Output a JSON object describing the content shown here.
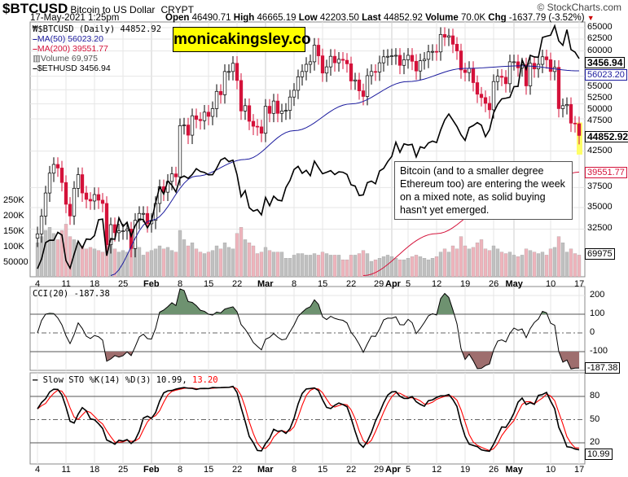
{
  "header": {
    "symbol": "$BTCUSD",
    "name": "Bitcoin to US Dollar",
    "exchange": "CRYPT",
    "brand": "© StockCharts.com",
    "datetime": "17-May-2021 1:25pm",
    "open_l": "Open",
    "open": "46490.71",
    "high_l": "High",
    "high": "46665.19",
    "low_l": "Low",
    "low": "42203.50",
    "last_l": "Last",
    "last": "44852.92",
    "vol_l": "Volume",
    "vol": "70.0K",
    "chg_l": "Chg",
    "chg": "-1637.79 (-3.52%)"
  },
  "legend": {
    "main": "$BTCUSD (Daily) 44852.92",
    "ma50": "MA(50) 56023.20",
    "ma200": "MA(200) 39551.77",
    "volume": "Volume 69,975",
    "eth": "$ETHUSD 3456.94"
  },
  "watermark": "monicakingsley.co",
  "annotation": "Bitcoin (and to a smaller degree Ethereum too) are entering the week on a mixed note, as solid buying hasn't yet emerged.",
  "colors": {
    "up": "#ffffff",
    "down": "#d4123a",
    "ma50": "#1b1b9e",
    "ma200": "#d4123a",
    "eth": "#000000",
    "vol_up": "#c0c0c0",
    "vol_down": "#eeb4bc",
    "cci_pos": "#6e9270",
    "cci_neg": "#9e6e6e",
    "sto_d": "#ff0000",
    "highlight": "#ffff66"
  },
  "chart_data": [
    {
      "type": "candlestick",
      "title": "$BTCUSD (Daily)",
      "scale": "log",
      "ylim": [
        31000,
        66000
      ],
      "yticks": [
        65000,
        62500,
        60000,
        55000,
        52500,
        50000,
        47500,
        42500,
        37500,
        35000,
        32500
      ],
      "x_labels": [
        {
          "i": 0,
          "t": "4"
        },
        {
          "i": 7,
          "t": "11"
        },
        {
          "i": 14,
          "t": "18"
        },
        {
          "i": 21,
          "t": "25"
        },
        {
          "i": 28,
          "t": "Feb",
          "b": true
        },
        {
          "i": 35,
          "t": "8"
        },
        {
          "i": 42,
          "t": "15"
        },
        {
          "i": 49,
          "t": "22"
        },
        {
          "i": 56,
          "t": "Mar",
          "b": true
        },
        {
          "i": 63,
          "t": "8"
        },
        {
          "i": 70,
          "t": "15"
        },
        {
          "i": 77,
          "t": "22"
        },
        {
          "i": 84,
          "t": "29"
        },
        {
          "i": 87,
          "t": "Apr",
          "b": true
        },
        {
          "i": 91,
          "t": "5"
        },
        {
          "i": 98,
          "t": "12"
        },
        {
          "i": 105,
          "t": "19"
        },
        {
          "i": 112,
          "t": "26"
        },
        {
          "i": 117,
          "t": "May",
          "b": true
        },
        {
          "i": 126,
          "t": "10"
        },
        {
          "i": 133,
          "t": "17"
        }
      ],
      "close": [
        31970,
        33990,
        36800,
        39400,
        40600,
        40100,
        38150,
        35400,
        34000,
        37400,
        39200,
        36800,
        36000,
        35800,
        36600,
        35900,
        35500,
        30800,
        33000,
        32100,
        32300,
        32300,
        32500,
        30400,
        33500,
        34300,
        34300,
        33100,
        33500,
        35500,
        37600,
        36900,
        38300,
        39300,
        38900,
        46400,
        46500,
        44900,
        48000,
        47400,
        47200,
        48600,
        47900,
        49200,
        52200,
        51600,
        55900,
        55900,
        57500,
        54200,
        48800,
        49700,
        47100,
        46300,
        46200,
        45200,
        49600,
        48400,
        50500,
        48400,
        48800,
        48900,
        51200,
        52400,
        54900,
        55900,
        57300,
        57800,
        61200,
        59000,
        55600,
        56800,
        58900,
        57600,
        58300,
        58100,
        57400,
        54100,
        54300,
        52300,
        51300,
        55100,
        55900,
        55800,
        57600,
        58800,
        58900,
        59000,
        59100,
        57100,
        58200,
        59100,
        57900,
        56000,
        58000,
        58300,
        59800,
        59900,
        59800,
        63500,
        62900,
        63200,
        61400,
        60000,
        56200,
        55700,
        56500,
        53800,
        51700,
        51100,
        50100,
        49000,
        54000,
        55000,
        54800,
        53600,
        57800,
        57800,
        56600,
        57200,
        53200,
        57500,
        56400,
        57300,
        58800,
        58200,
        55900,
        56700,
        49200,
        49700,
        49900,
        46800,
        46700,
        44853
      ],
      "volume_k": [
        110,
        130,
        150,
        160,
        140,
        120,
        150,
        170,
        130,
        120,
        110,
        100,
        90,
        95,
        90,
        85,
        80,
        150,
        120,
        90,
        80,
        85,
        80,
        120,
        100,
        95,
        70,
        80,
        85,
        90,
        100,
        90,
        95,
        85,
        80,
        150,
        120,
        100,
        110,
        90,
        80,
        75,
        80,
        85,
        100,
        90,
        110,
        95,
        90,
        140,
        160,
        120,
        110,
        100,
        75,
        80,
        95,
        85,
        80,
        80,
        80,
        60,
        60,
        70,
        75,
        75,
        70,
        70,
        75,
        70,
        80,
        75,
        70,
        70,
        70,
        55,
        55,
        70,
        70,
        75,
        85,
        75,
        50,
        55,
        60,
        65,
        70,
        65,
        60,
        55,
        55,
        60,
        65,
        70,
        65,
        60,
        55,
        60,
        65,
        80,
        90,
        80,
        100,
        90,
        130,
        100,
        90,
        95,
        110,
        120,
        90,
        85,
        100,
        90,
        80,
        75,
        80,
        70,
        65,
        70,
        90,
        85,
        80,
        75,
        80,
        70,
        90,
        95,
        130,
        110,
        80,
        90,
        75,
        70
      ],
      "volume_ticks": [
        "250K",
        "200K",
        "150K",
        "100K",
        "50000"
      ],
      "ma50_points": [
        [
          18,
          27700
        ],
        [
          28,
          33500
        ],
        [
          39,
          39000
        ],
        [
          51,
          41300
        ],
        [
          63,
          45600
        ],
        [
          77,
          50000
        ],
        [
          91,
          54000
        ],
        [
          105,
          56500
        ],
        [
          119,
          57000
        ],
        [
          133,
          56023
        ]
      ],
      "ma200_points": [
        [
          80,
          27700
        ],
        [
          98,
          32000
        ],
        [
          112,
          35500
        ],
        [
          126,
          38500
        ],
        [
          133,
          39552
        ]
      ],
      "eth_close": [
        1041,
        1100,
        1208,
        1225,
        1224,
        1281,
        1262,
        1090,
        1044,
        1130,
        1218,
        1171,
        1233,
        1230,
        1257,
        1377,
        1382,
        1121,
        1236,
        1231,
        1391,
        1324,
        1357,
        1253,
        1332,
        1382,
        1377,
        1314,
        1369,
        1515,
        1660,
        1594,
        1718,
        1677,
        1614,
        1746,
        1768,
        1744,
        1783,
        1843,
        1814,
        1804,
        1779,
        1781,
        1848,
        1937,
        1960,
        1919,
        1935,
        1781,
        1570,
        1626,
        1475,
        1446,
        1459,
        1416,
        1564,
        1492,
        1575,
        1541,
        1533,
        1655,
        1723,
        1834,
        1868,
        1795,
        1826,
        1771,
        1924,
        1854,
        1791,
        1806,
        1823,
        1782,
        1810,
        1806,
        1783,
        1681,
        1669,
        1581,
        1587,
        1702,
        1717,
        1691,
        1819,
        1846,
        1919,
        1977,
        2144,
        2024,
        2124,
        2110,
        2118,
        1971,
        2088,
        2072,
        2135,
        2157,
        2140,
        2299,
        2435,
        2519,
        2431,
        2345,
        2237,
        2166,
        2331,
        2358,
        2399,
        2363,
        2213,
        2302,
        2535,
        2662,
        2746,
        2757,
        2773,
        2945,
        2950,
        3431,
        3253,
        3522,
        3490,
        3484,
        3902,
        3928,
        3952,
        4169,
        3825,
        3730,
        4079,
        3640,
        3586,
        3457
      ],
      "tags": {
        "eth": "3456.94",
        "ma50": "56023.20",
        "last": "44852.92",
        "ma200": "39551.77",
        "volume": "69975"
      }
    },
    {
      "type": "line",
      "title": "CCI(20)",
      "legend": "CCI(20) -187.38",
      "yticks": [
        "200",
        "100",
        "0",
        "-100"
      ],
      "tag": "-187.38"
    },
    {
      "type": "line",
      "title": "Slow STO %K(14) %D(3)",
      "legend_a": "Slow STO %K(14) %D(3) 10.99,",
      "legend_b": "13.20",
      "yticks": [
        "80",
        "50",
        "20"
      ],
      "tag": "10.99",
      "tag_d": "13.20"
    }
  ]
}
